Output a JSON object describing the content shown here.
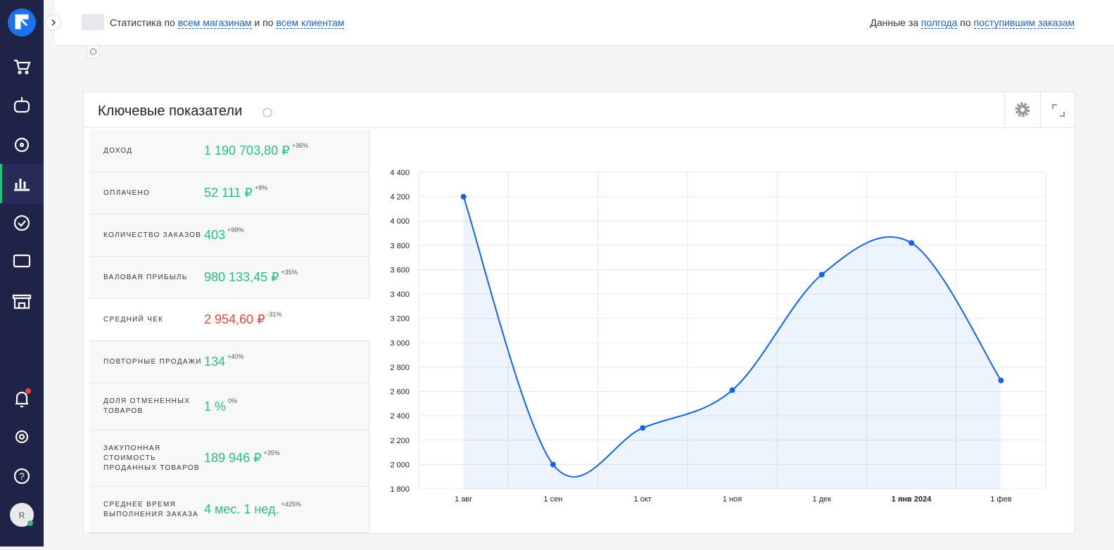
{
  "header": {
    "left_prefix": "Статистика по",
    "stores_link": "всем магазинам",
    "left_conj": "и по",
    "clients_link": "всем клиентам",
    "right_prefix": "Данные за",
    "period_link": "полгода",
    "right_conj": "по",
    "orders_link": "поступившим заказам"
  },
  "sidebar": {
    "avatar": "R"
  },
  "panel": {
    "title": "Ключевые показатели"
  },
  "metrics": [
    {
      "label": "ДОХОД",
      "value": "1 190 703,80 ₽",
      "change": "+36%",
      "color": "#2bbd7e"
    },
    {
      "label": "ОПЛАЧЕНО",
      "value": "52 111 ₽",
      "change": "+9%",
      "color": "#2bbd7e"
    },
    {
      "label": "КОЛИЧЕСТВО ЗАКАЗОВ",
      "value": "403",
      "change": "+99%",
      "color": "#2bbd7e"
    },
    {
      "label": "ВАЛОВАЯ ПРИБЫЛЬ",
      "value": "980 133,45 ₽",
      "change": "+35%",
      "color": "#2bbd7e"
    },
    {
      "label": "СРЕДНИЙ ЧЕК",
      "value": "2 954,60 ₽",
      "change": "-31%",
      "color": "#ef4444"
    },
    {
      "label": "ПОВТОРНЫЕ ПРОДАЖИ",
      "value": "134",
      "change": "+40%",
      "color": "#2bbd7e"
    },
    {
      "label": "ДОЛЯ ОТМЕНЕННЫХ ТОВАРОВ",
      "value": "1 %",
      "change": "0%",
      "color": "#2bbd7e"
    },
    {
      "label": "ЗАКУПОННАЯ СТОИМОСТЬ ПРОДАННЫХ ТОВАРОВ",
      "value": "189 946 ₽",
      "change": "+35%",
      "color": "#2bbd7e"
    },
    {
      "label": "СРЕДНЕЕ ВРЕМЯ ВЫПОЛНЕНИЯ ЗАКАЗА",
      "value": "4 мес. 1 нед.",
      "change": "+425%",
      "color": "#2bbd7e"
    }
  ],
  "chart_data": {
    "type": "line",
    "color": "#1463e8",
    "grid": true,
    "categories": [
      "1 авг",
      "1 сен",
      "1 окт",
      "1 ноя",
      "1 дек",
      "1 янв 2024",
      "1 фев"
    ],
    "values": [
      4200,
      2000,
      2300,
      2610,
      3560,
      3820,
      2690
    ],
    "ylim": [
      1800,
      4400
    ],
    "yticks": [
      {
        "value": 1800,
        "label": "1 800"
      },
      {
        "value": 2000,
        "label": "2 000"
      },
      {
        "value": 2200,
        "label": "2 200"
      },
      {
        "value": 2400,
        "label": "2 400"
      },
      {
        "value": 2600,
        "label": "2 600"
      },
      {
        "value": 2800,
        "label": "2 800"
      },
      {
        "value": 3000,
        "label": "3 000"
      },
      {
        "value": 3200,
        "label": "3 200"
      },
      {
        "value": 3400,
        "label": "3 400"
      },
      {
        "value": 3600,
        "label": "3 600"
      },
      {
        "value": 3800,
        "label": "3 800"
      },
      {
        "value": 4000,
        "label": "4 000"
      },
      {
        "value": 4200,
        "label": "4 200"
      },
      {
        "value": 4400,
        "label": "4 400"
      }
    ]
  }
}
